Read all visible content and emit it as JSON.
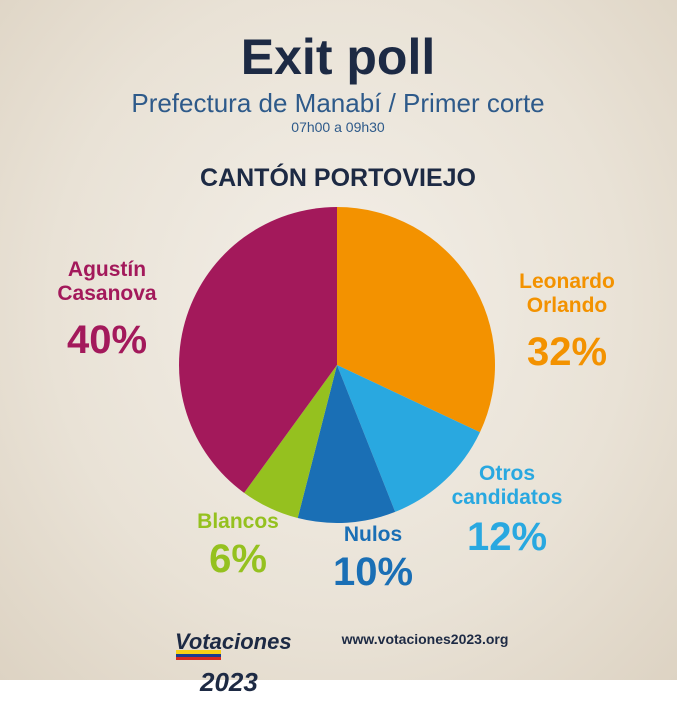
{
  "header": {
    "title": "Exit poll",
    "subtitle": "Prefectura de Manabí / Primer corte",
    "time": "07h00 a 09h30"
  },
  "chart_data": {
    "type": "pie",
    "title": "CANTÓN PORTOVIEJO",
    "categories": [
      "Leonardo\nOrlando",
      "Otros\ncandidatos",
      "Nulos",
      "Blancos",
      "Agustín\nCasanova"
    ],
    "values": [
      32,
      12,
      10,
      6,
      40
    ],
    "value_labels": [
      "32%",
      "12%",
      "10%",
      "6%",
      "40%"
    ],
    "colors": [
      "#f39200",
      "#29a8e0",
      "#1a6fb5",
      "#95c11f",
      "#a3195b"
    ]
  },
  "footer": {
    "logo_line1": "Votaciones",
    "logo_line2": "2023",
    "url": "www.votaciones2023.org"
  }
}
